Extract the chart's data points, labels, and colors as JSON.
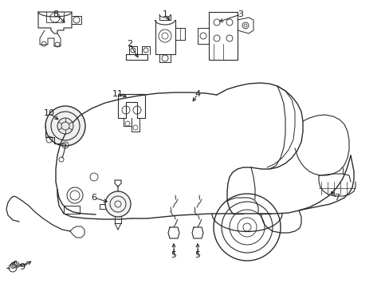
{
  "bg": "#ffffff",
  "lc": "#2a2a2a",
  "tc": "#1a1a1a",
  "fig_w": 4.89,
  "fig_h": 3.6,
  "dpi": 100,
  "callouts": [
    [
      "1",
      207,
      18,
      215,
      28
    ],
    [
      "2",
      163,
      55,
      175,
      75
    ],
    [
      "3",
      302,
      18,
      272,
      28
    ],
    [
      "4",
      248,
      118,
      240,
      130
    ],
    [
      "5",
      218,
      320,
      218,
      302
    ],
    [
      "5",
      248,
      320,
      248,
      302
    ],
    [
      "6",
      118,
      248,
      138,
      254
    ],
    [
      "7",
      423,
      248,
      413,
      238
    ],
    [
      "8",
      70,
      18,
      84,
      30
    ],
    [
      "9",
      28,
      335,
      42,
      326
    ],
    [
      "10",
      62,
      142,
      76,
      152
    ],
    [
      "11",
      148,
      118,
      162,
      122
    ]
  ]
}
